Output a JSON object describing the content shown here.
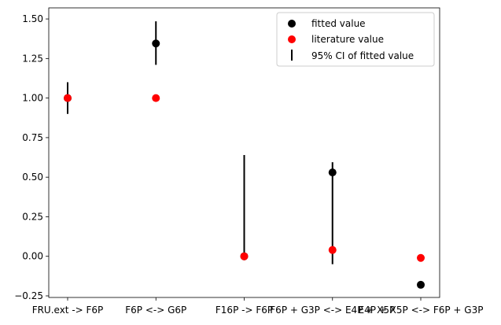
{
  "chart_data": {
    "type": "scatter",
    "categories": [
      "FRU.ext -> F6P",
      "F6P <-> G6P",
      "F16P -> F6P",
      "F6P + G3P <-> E4P + X5P",
      "E4P + X5P <-> F6P + G3P"
    ],
    "series": [
      {
        "name": "fitted value",
        "color": "#000000",
        "values": [
          1.0,
          1.345,
          0.0,
          0.53,
          -0.18
        ]
      },
      {
        "name": "literature value",
        "color": "#ff0000",
        "values": [
          1.0,
          1.0,
          0.0,
          0.04,
          -0.01
        ]
      },
      {
        "name": "95% CI of fitted value",
        "color": "#000000",
        "ci": [
          [
            0.9,
            1.1
          ],
          [
            1.21,
            1.485
          ],
          [
            0.0,
            0.64
          ],
          [
            -0.05,
            0.595
          ],
          [
            -0.195,
            -0.16
          ]
        ]
      }
    ],
    "y_ticks": [
      "−0.25",
      "0.00",
      "0.25",
      "0.50",
      "0.75",
      "1.00",
      "1.25",
      "1.50"
    ],
    "y_tick_values": [
      -0.25,
      0.0,
      0.25,
      0.5,
      0.75,
      1.0,
      1.25,
      1.5
    ],
    "ylim": [
      -0.26,
      1.57
    ],
    "legend_position": "upper right",
    "grid": false
  }
}
